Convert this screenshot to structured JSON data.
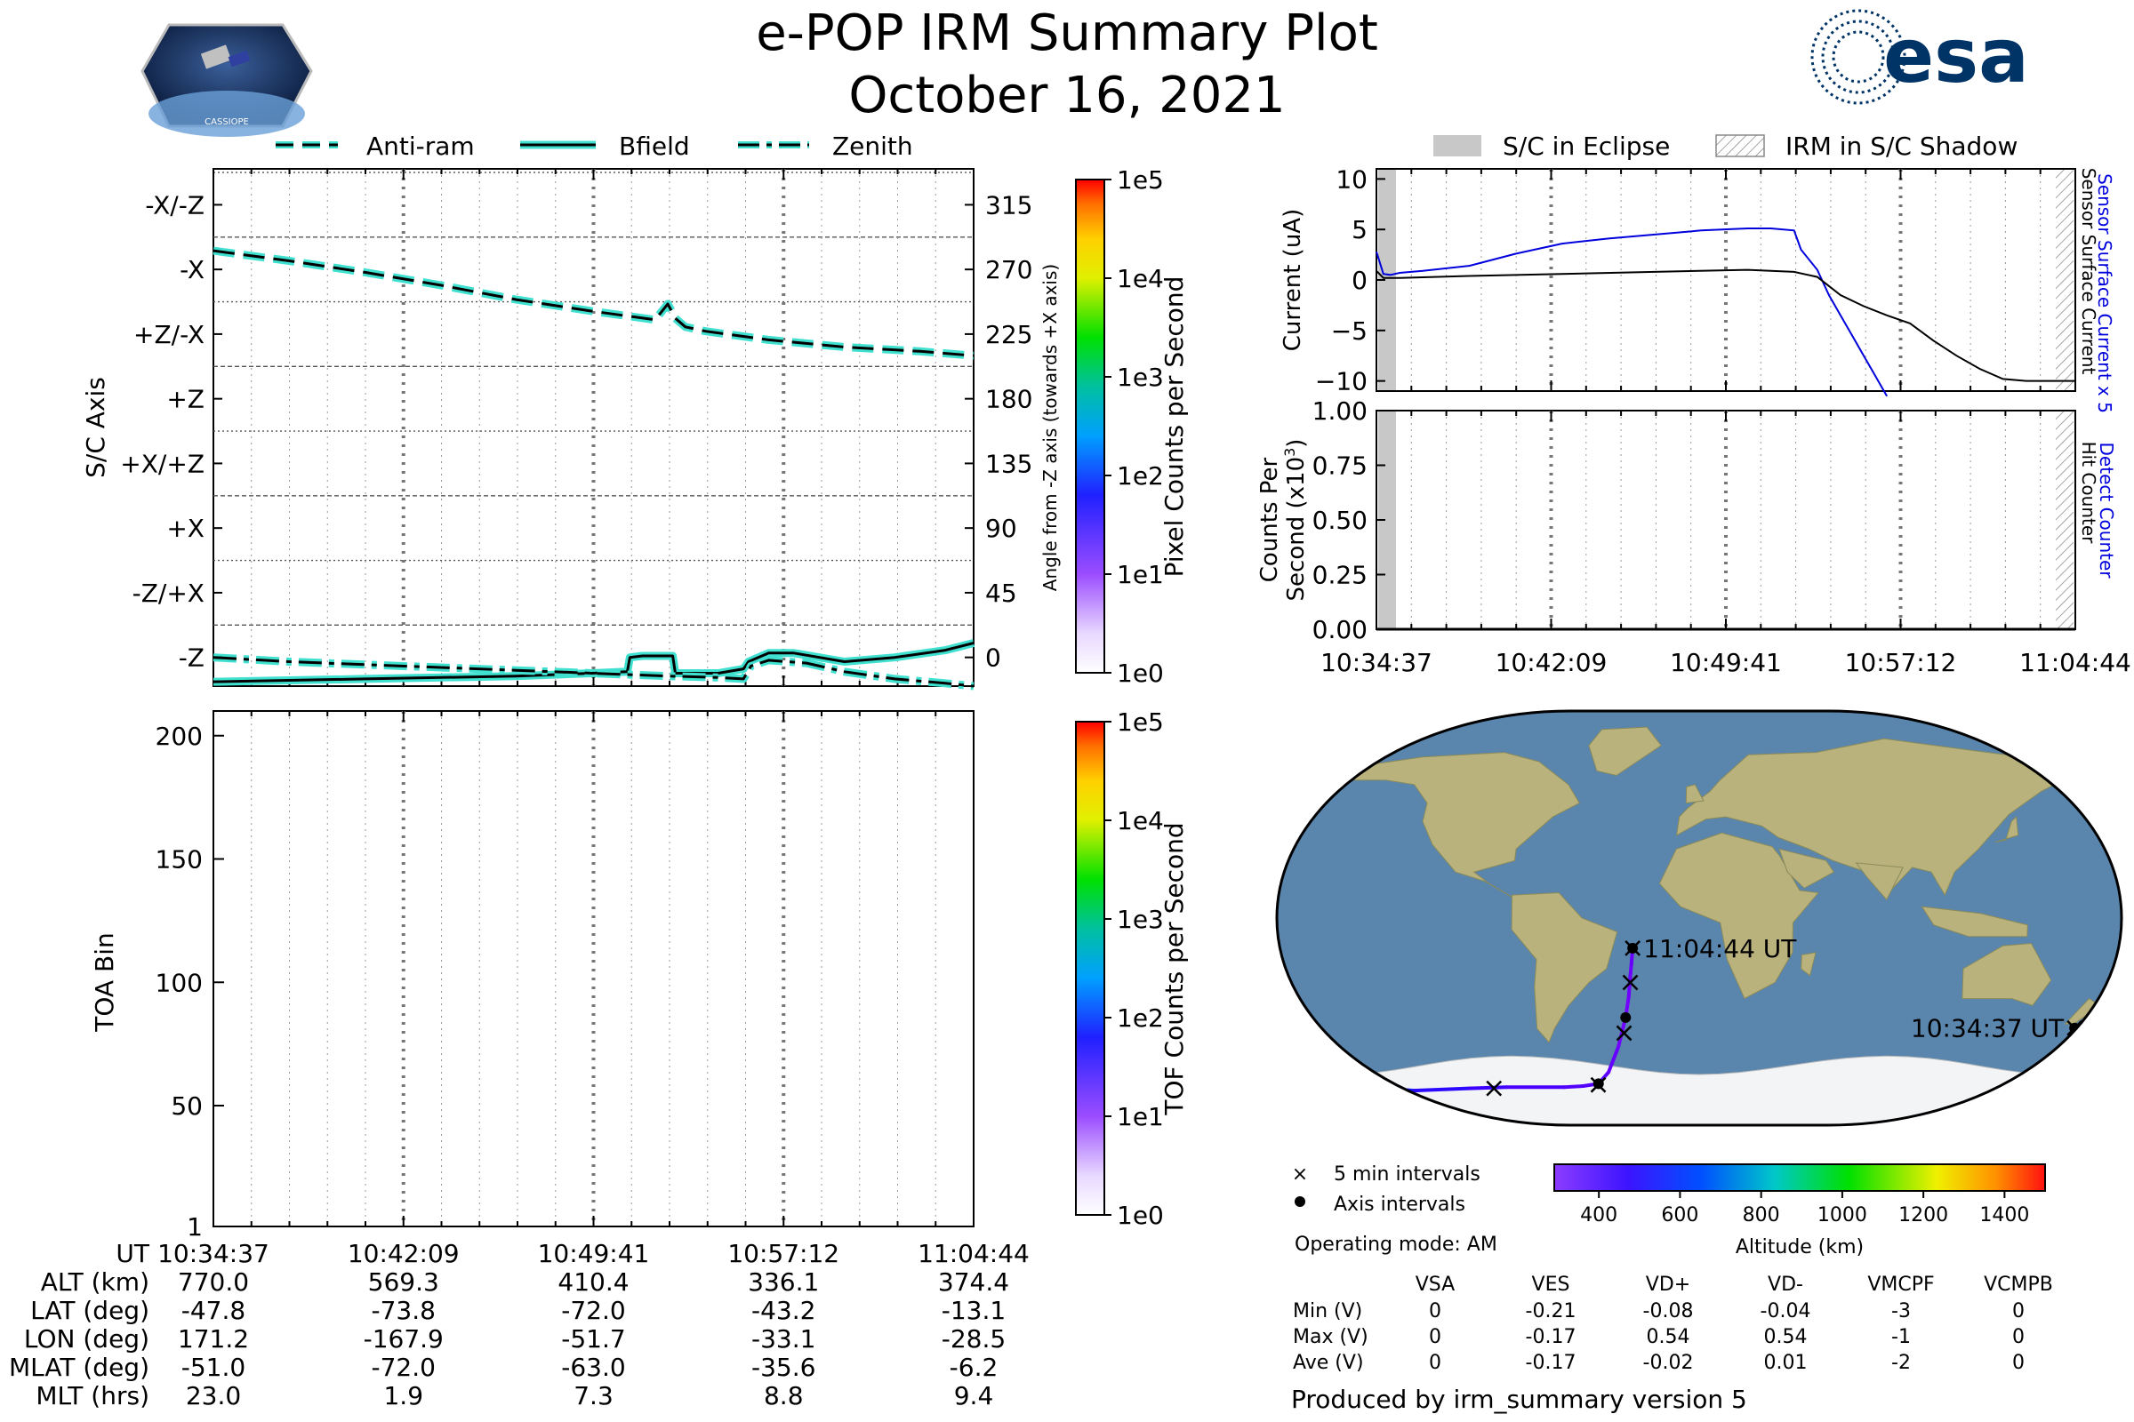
{
  "header": {
    "title": "e-POP IRM Summary Plot",
    "date": "October 16, 2021",
    "esa_logo_text": "esa",
    "cassiope_logo_text": "CASSIOPE"
  },
  "colors": {
    "trace_glow": "#40e0d0",
    "current_blue": "#0000dd",
    "eclipse_gray": "#c8c8c8",
    "esa_blue": "#003366",
    "ocean": "#5a86ad",
    "land": "#b9b27c",
    "ice": "#f2f4f6"
  },
  "time_ticks": [
    "10:34:37",
    "10:42:09",
    "10:49:41",
    "10:57:12",
    "11:04:44"
  ],
  "legend_top_left": {
    "items": [
      {
        "label": "Anti-ram",
        "style": "dashed"
      },
      {
        "label": "Bfield",
        "style": "solid"
      },
      {
        "label": "Zenith",
        "style": "dashdot"
      }
    ]
  },
  "legend_top_right": {
    "eclipse_label": "S/C in Eclipse",
    "shadow_label": "IRM in S/C Shadow"
  },
  "footer": {
    "legend_x_label": "5 min intervals",
    "legend_dot_label": "Axis intervals",
    "operating_mode": "Operating mode: AM",
    "produced_by": "Produced by irm_summary version 5"
  },
  "chart_data": [
    {
      "id": "sc_axis",
      "type": "line",
      "ylabel": "S/C Axis",
      "right_label": "Angle from -Z axis (towards +X axis)",
      "axis_labels": [
        "-Z",
        "-Z/+X",
        "+X",
        "+X/+Z",
        "+Z",
        "+Z/-X",
        "-X",
        "-X/-Z"
      ],
      "axis_angles": [
        0,
        45,
        90,
        135,
        180,
        225,
        270,
        315
      ],
      "ylim": [
        -20,
        340
      ],
      "x_minutes": [
        0,
        7.53,
        15.07,
        22.58,
        30.12
      ],
      "series": [
        {
          "name": "Anti-ram",
          "style": "dashed",
          "x": [
            0,
            3,
            6,
            9,
            12,
            15,
            17.5,
            18,
            18.3,
            18.7,
            19.5,
            22,
            25,
            28,
            30.12
          ],
          "y": [
            283,
            276,
            268,
            259,
            249,
            241,
            235,
            246,
            236,
            230,
            227,
            221,
            216,
            213,
            210
          ]
        },
        {
          "name": "Bfield",
          "style": "solid",
          "x": [
            0,
            3,
            6,
            9,
            12,
            15,
            16.4,
            16.5,
            17,
            18.2,
            18.3,
            20,
            21,
            21.2,
            22,
            23,
            25,
            27,
            29,
            30.12
          ],
          "y": [
            -17,
            -16,
            -15,
            -14,
            -13,
            -11,
            -10,
            0,
            1,
            1,
            -11,
            -11,
            -8,
            -3,
            3,
            3,
            -3,
            0,
            5,
            10
          ]
        },
        {
          "name": "Zenith",
          "style": "dashdot",
          "x": [
            0,
            3,
            6,
            9,
            12,
            15,
            18,
            20,
            21,
            21.3,
            22,
            23.5,
            25,
            27,
            29,
            30.12
          ],
          "y": [
            0,
            -3,
            -5,
            -7,
            -9,
            -11,
            -13,
            -14,
            -15,
            -6,
            -2,
            -4,
            -10,
            -15,
            -18,
            -20
          ]
        }
      ],
      "colorbar_label": "Pixel Counts per Second",
      "colorbar_ticks": [
        "1e5",
        "1e4",
        "1e3",
        "1e2",
        "1e1",
        "1e0"
      ]
    },
    {
      "id": "toa",
      "type": "heatmap",
      "ylabel": "TOA Bin",
      "yticks": [
        1,
        50,
        100,
        150,
        200
      ],
      "ylim": [
        1,
        210
      ],
      "colorbar_label": "TOF Counts per Second",
      "colorbar_ticks": [
        "1e5",
        "1e4",
        "1e3",
        "1e2",
        "1e1",
        "1e0"
      ]
    },
    {
      "id": "current",
      "type": "line",
      "ylabel": "Current (uA)",
      "yticks": [
        -10,
        -5,
        0,
        5,
        10
      ],
      "ylim": [
        -11,
        11
      ],
      "right_label_blue": "Sensor Surface Current x 5",
      "right_label_black": "Sensor Surface Current",
      "series": [
        {
          "name": "Sensor Surface Current x 5",
          "color": "blue",
          "x": [
            0,
            0.3,
            0.6,
            1,
            2,
            4,
            6,
            8,
            10,
            12,
            14,
            16,
            17,
            18,
            18.3,
            19,
            19.5,
            20,
            20.5,
            21,
            21.5,
            22
          ],
          "y": [
            2.8,
            0.6,
            0.5,
            0.7,
            0.9,
            1.4,
            2.6,
            3.6,
            4.1,
            4.5,
            4.9,
            5.1,
            5.1,
            4.9,
            3.0,
            1.0,
            -1.5,
            -3.5,
            -5.5,
            -7.5,
            -9.5,
            -11.5
          ]
        },
        {
          "name": "Sensor Surface Current",
          "color": "black",
          "x": [
            0,
            0.3,
            1,
            4,
            8,
            12,
            16,
            18,
            19,
            20,
            21,
            22,
            23,
            24,
            25,
            26,
            27,
            28,
            29,
            30.12
          ],
          "y": [
            0.9,
            0.2,
            0.2,
            0.4,
            0.6,
            0.8,
            1.0,
            0.8,
            0.3,
            -1.5,
            -2.6,
            -3.5,
            -4.3,
            -6.0,
            -7.5,
            -8.8,
            -9.8,
            -10.0,
            -10.0,
            -10.0
          ]
        }
      ]
    },
    {
      "id": "counts",
      "type": "line",
      "ylabel_line1": "Counts Per",
      "ylabel_line2": "Second (x10",
      "ylabel_sup": "3",
      "ylabel_close": ")",
      "yticks": [
        "0.00",
        "0.25",
        "0.50",
        "0.75",
        "1.00"
      ],
      "ylim": [
        0,
        1
      ],
      "right_label_blue": "Detect Counter",
      "right_label_black": "Hit Counter",
      "series": [
        {
          "name": "Detect Counter",
          "color": "blue",
          "x": [
            0,
            30.12
          ],
          "y": [
            0,
            0
          ]
        },
        {
          "name": "Hit Counter",
          "color": "black",
          "x": [
            0,
            30.12
          ],
          "y": [
            0,
            0
          ]
        }
      ]
    },
    {
      "id": "orbit_map",
      "type": "scatter",
      "start_label": "10:34:37 UT",
      "end_label": "11:04:44 UT",
      "track_lon": [
        171.2,
        177,
        -178,
        -172,
        -167.9,
        -150,
        -120,
        -100,
        -70,
        -60,
        -51.7,
        -45,
        -38,
        -33.1,
        -31,
        -30,
        -29.2,
        -28.5
      ],
      "track_lat": [
        -47.8,
        -55,
        -62,
        -68,
        -73.8,
        -75,
        -74,
        -73.5,
        -73.5,
        -73,
        -72,
        -67,
        -56,
        -43.2,
        -34,
        -26,
        -20,
        -13.1
      ],
      "track_alt": [
        770,
        720,
        660,
        610,
        569.3,
        520,
        480,
        450,
        420,
        415,
        410.4,
        390,
        360,
        336.1,
        345,
        355,
        365,
        374.4
      ],
      "five_min_markers": [
        {
          "lon": 171.2,
          "lat": -47.8
        },
        {
          "lon": 177.0,
          "lat": -55.0
        },
        {
          "lon": -107.0,
          "lat": -74.0
        },
        {
          "lon": -52.0,
          "lat": -72.5
        },
        {
          "lon": -34.5,
          "lat": -50.0
        },
        {
          "lon": -30.0,
          "lat": -28.0
        },
        {
          "lon": -28.5,
          "lat": -13.1
        }
      ],
      "axis_dots": [
        {
          "lon": 171.2,
          "lat": -47.8
        },
        {
          "lon": -167.9,
          "lat": -73.8
        },
        {
          "lon": -51.7,
          "lat": -72.0
        },
        {
          "lon": -33.1,
          "lat": -43.2
        },
        {
          "lon": -28.5,
          "lat": -13.1
        }
      ],
      "colorbar_label": "Altitude (km)",
      "colorbar_ticks": [
        400,
        600,
        800,
        1000,
        1200,
        1400
      ],
      "colorbar_range": [
        290,
        1500
      ]
    }
  ],
  "ephemeris_table": {
    "row_labels": [
      "UT",
      "ALT (km)",
      "LAT (deg)",
      "LON (deg)",
      "MLAT (deg)",
      "MLT (hrs)"
    ],
    "rows": [
      [
        "10:34:37",
        "10:42:09",
        "10:49:41",
        "10:57:12",
        "11:04:44"
      ],
      [
        "770.0",
        "569.3",
        "410.4",
        "336.1",
        "374.4"
      ],
      [
        "-47.8",
        "-73.8",
        "-72.0",
        "-43.2",
        "-13.1"
      ],
      [
        "171.2",
        "-167.9",
        "-51.7",
        "-33.1",
        "-28.5"
      ],
      [
        "-51.0",
        "-72.0",
        "-63.0",
        "-35.6",
        "-6.2"
      ],
      [
        "23.0",
        "1.9",
        "7.3",
        "8.8",
        "9.4"
      ]
    ]
  },
  "voltage_table": {
    "headers": [
      "VSA",
      "VES",
      "VD+",
      "VD-",
      "VMCPF",
      "VCMPB"
    ],
    "row_labels": [
      "Min (V)",
      "Max (V)",
      "Ave (V)"
    ],
    "rows": [
      [
        "0",
        "-0.21",
        "-0.08",
        "-0.04",
        "-3",
        "0"
      ],
      [
        "0",
        "-0.17",
        "0.54",
        "0.54",
        "-1",
        "0"
      ],
      [
        "0",
        "-0.17",
        "-0.02",
        "0.01",
        "-2",
        "0"
      ]
    ]
  }
}
